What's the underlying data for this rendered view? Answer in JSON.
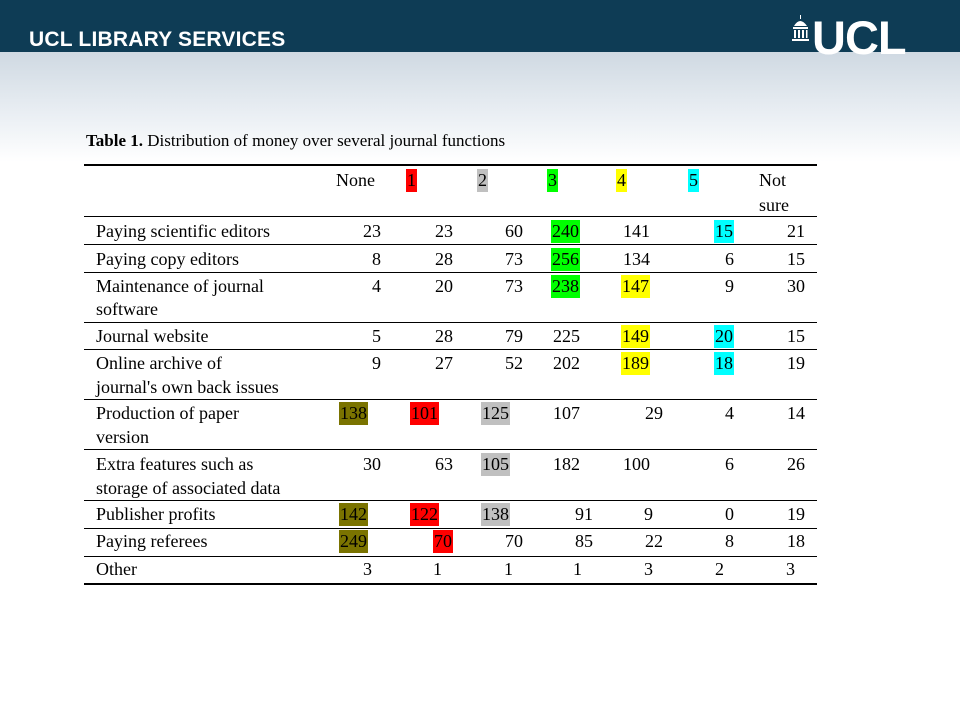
{
  "header": {
    "brand": "UCL LIBRARY SERVICES",
    "logo_text": "UCL"
  },
  "table": {
    "title_bold": "Table 1.",
    "title_rest": " Distribution of money over several journal functions",
    "columns": [
      "None",
      "1",
      "2",
      "3",
      "4",
      "5",
      "Not",
      "sure"
    ],
    "colors": {
      "olive": "#7a7300",
      "red": "#ff0000",
      "grey": "#c0c0c0",
      "green": "#00ff00",
      "yellow": "#ffff00",
      "cyan": "#00ffff"
    },
    "rows": [
      {
        "label1": "Paying scientific editors",
        "label2": "",
        "values": [
          "23",
          "23",
          "60",
          "240",
          "141",
          "15",
          "21"
        ]
      },
      {
        "label1": "Paying copy editors",
        "label2": "",
        "values": [
          "8",
          "28",
          "73",
          "256",
          "134",
          "6",
          "15"
        ]
      },
      {
        "label1": "Maintenance of journal",
        "label2": "software",
        "values": [
          "4",
          "20",
          "73",
          "238",
          "147",
          "9",
          "30"
        ]
      },
      {
        "label1": "Journal website",
        "label2": "",
        "values": [
          "5",
          "28",
          "79",
          "225",
          "149",
          "20",
          "15"
        ]
      },
      {
        "label1": "Online archive of",
        "label2": "journal's own back issues",
        "values": [
          "9",
          "27",
          "52",
          "202",
          "189",
          "18",
          "19"
        ]
      },
      {
        "label1": "Production of paper",
        "label2": "version",
        "values": [
          "138",
          "101",
          "125",
          "107",
          "29",
          "4",
          "14"
        ]
      },
      {
        "label1": "Extra features such as",
        "label2": "storage of associated data",
        "values": [
          "30",
          "63",
          "105",
          "182",
          "100",
          "6",
          "26"
        ]
      },
      {
        "label1": "Publisher profits",
        "label2": "",
        "values": [
          "142",
          "122",
          "138",
          "91",
          "9",
          "0",
          "19"
        ]
      },
      {
        "label1": "Paying referees",
        "label2": "",
        "values": [
          "249",
          "70",
          "70",
          "85",
          "22",
          "8",
          "18"
        ]
      },
      {
        "label1": "Other",
        "label2": "",
        "values": [
          "3",
          "1",
          "1",
          "1",
          "3",
          "2",
          "3"
        ]
      }
    ]
  }
}
